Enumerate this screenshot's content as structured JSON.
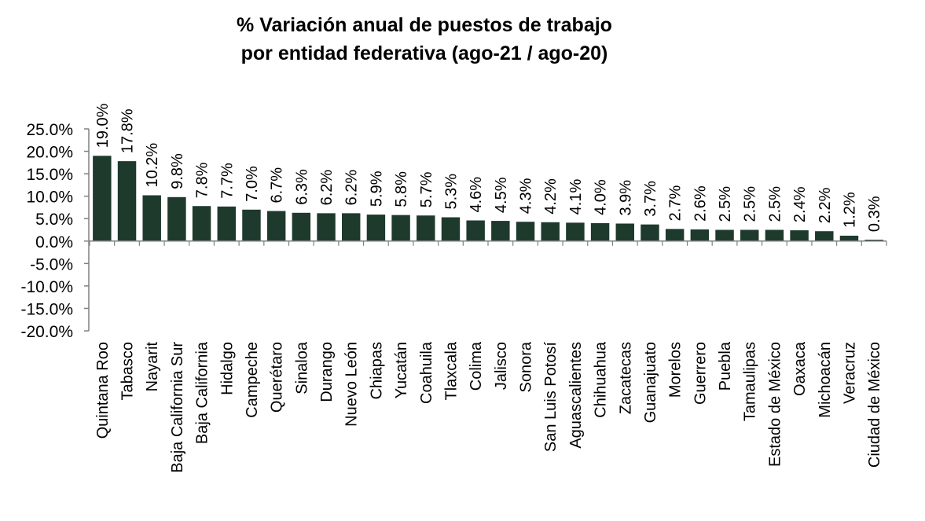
{
  "chart_data": {
    "type": "bar",
    "title": [
      "% Variación anual de puestos de trabajo",
      "por entidad federativa (ago-21 / ago-20)"
    ],
    "xlabel": "",
    "ylabel": "",
    "ylim": [
      -20,
      25
    ],
    "yticks": [
      25,
      20,
      15,
      10,
      5,
      0,
      -5,
      -10,
      -15,
      -20
    ],
    "ytick_labels": [
      "25.0%",
      "20.0%",
      "15.0%",
      "10.0%",
      "5.0%",
      "0.0%",
      "-5.0%",
      "-10.0%",
      "-15.0%",
      "-20.0%"
    ],
    "bar_color": "#1e3a2c",
    "grid": false,
    "legend": "none",
    "categories": [
      "Quintana Roo",
      "Tabasco",
      "Nayarit",
      "Baja California Sur",
      "Baja California",
      "Hidalgo",
      "Campeche",
      "Querétaro",
      "Sinaloa",
      "Durango",
      "Nuevo León",
      "Chiapas",
      "Yucatán",
      "Coahuila",
      "Tlaxcala",
      "Colima",
      "Jalisco",
      "Sonora",
      "San Luis Potosí",
      "Aguascalientes",
      "Chihuahua",
      "Zacatecas",
      "Guanajuato",
      "Morelos",
      "Guerrero",
      "Puebla",
      "Tamaulipas",
      "Estado de México",
      "Oaxaca",
      "Michoacán",
      "Veracruz",
      "Ciudad de México"
    ],
    "values": [
      19.0,
      17.8,
      10.2,
      9.8,
      7.8,
      7.7,
      7.0,
      6.7,
      6.3,
      6.2,
      6.2,
      5.9,
      5.8,
      5.7,
      5.3,
      4.6,
      4.5,
      4.3,
      4.2,
      4.1,
      4.0,
      3.9,
      3.7,
      2.7,
      2.6,
      2.5,
      2.5,
      2.5,
      2.4,
      2.2,
      1.2,
      0.3
    ],
    "data_labels": [
      "19.0%",
      "17.8%",
      "10.2%",
      "9.8%",
      "7.8%",
      "7.7%",
      "7.0%",
      "6.7%",
      "6.3%",
      "6.2%",
      "6.2%",
      "5.9%",
      "5.8%",
      "5.7%",
      "5.3%",
      "4.6%",
      "4.5%",
      "4.3%",
      "4.2%",
      "4.1%",
      "4.0%",
      "3.9%",
      "3.7%",
      "2.7%",
      "2.6%",
      "2.5%",
      "2.5%",
      "2.5%",
      "2.4%",
      "2.2%",
      "1.2%",
      "0.3%"
    ]
  }
}
